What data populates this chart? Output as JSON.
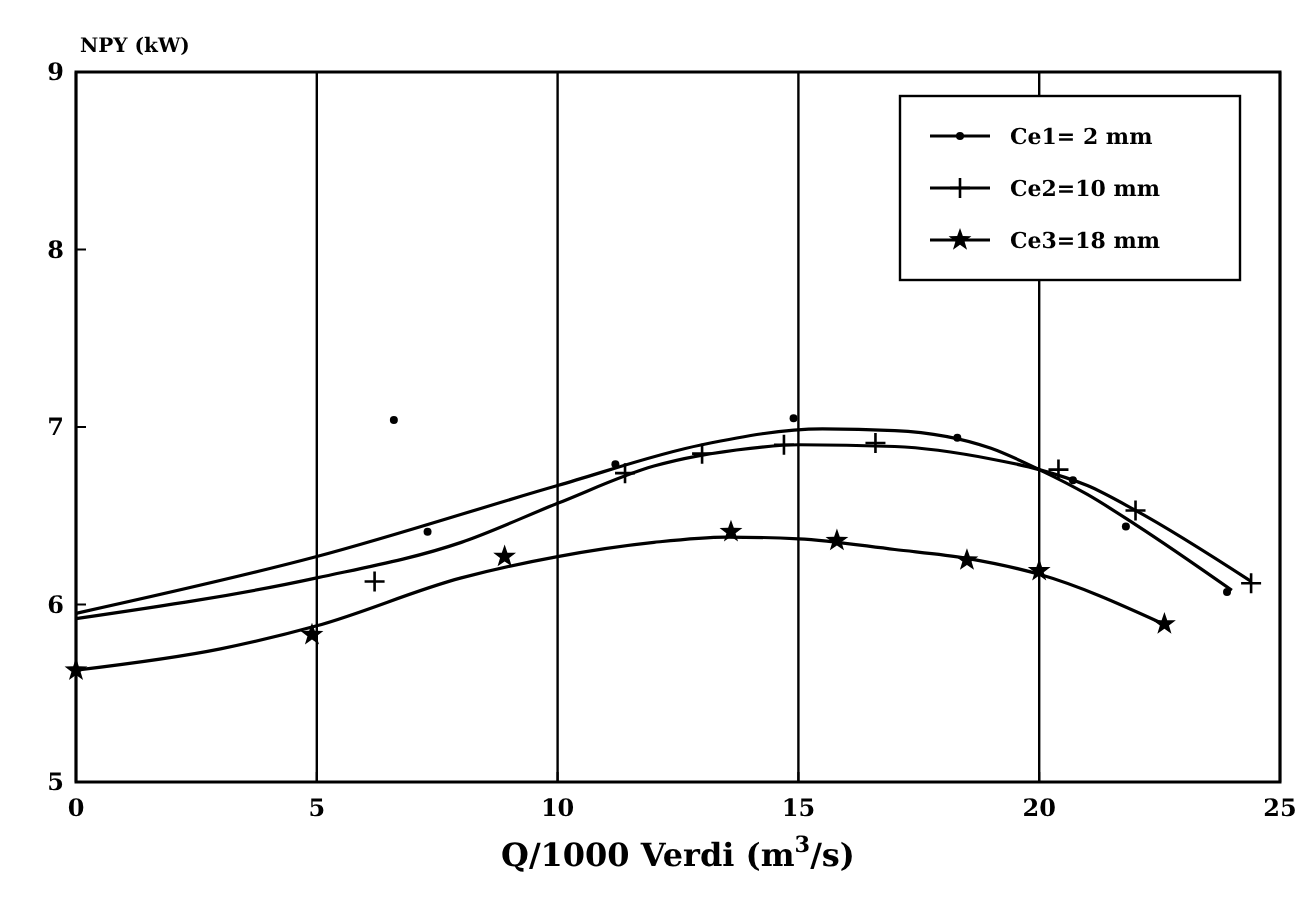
{
  "chart_data": {
    "type": "scatter",
    "xlabel": "Q/1000 Verdi (m$^{3}$/s)",
    "ylabel": "NPY (kW)",
    "xlim": [
      0,
      25
    ],
    "ylim": [
      5,
      9
    ],
    "xticks": [
      0,
      5,
      10,
      15,
      20,
      25
    ],
    "yticks": [
      5,
      6,
      7,
      8,
      9
    ],
    "grid": "x",
    "legend": "top right",
    "series": [
      {
        "name": "Ce1= 2 mm",
        "color": "#000000",
        "marker": "circle",
        "x": [
          6.6,
          7.3,
          11.2,
          14.9,
          18.3,
          20.7,
          21.8,
          23.9
        ],
        "values": [
          7.04,
          6.41,
          6.79,
          7.05,
          6.94,
          6.7,
          6.44,
          6.07
        ]
      },
      {
        "name": "Ce2=10 mm",
        "color": "#000000",
        "marker": "cross",
        "x": [
          6.2,
          11.4,
          13,
          14.7,
          16.6,
          20.4,
          22,
          24.4
        ],
        "values": [
          6.13,
          6.74,
          6.85,
          6.9,
          6.91,
          6.76,
          6.53,
          6.12
        ]
      },
      {
        "name": "Ce3=18 mm",
        "color": "#000000",
        "marker": "star",
        "x": [
          0,
          4.9,
          8.9,
          13.6,
          15.8,
          18.5,
          20,
          22.6
        ],
        "values": [
          5.63,
          5.83,
          6.27,
          6.41,
          6.36,
          6.25,
          6.19,
          5.89
        ]
      },
      {
        "type": "line",
        "color": "#000000",
        "marker": "none",
        "x": [
          0,
          5,
          10,
          13,
          15.5,
          17,
          19,
          20,
          21,
          22,
          24
        ],
        "values": [
          5.95,
          6.27,
          6.67,
          6.9,
          6.99,
          6.98,
          6.88,
          6.76,
          6.62,
          6.45,
          6.08
        ]
      },
      {
        "type": "line",
        "color": "#000000",
        "marker": "none",
        "x": [
          0,
          5,
          8,
          10,
          12,
          14,
          15,
          17,
          19,
          20,
          21,
          22,
          24.4
        ],
        "values": [
          5.92,
          6.15,
          6.35,
          6.57,
          6.78,
          6.88,
          6.9,
          6.89,
          6.82,
          6.76,
          6.67,
          6.53,
          6.13
        ]
      },
      {
        "type": "line",
        "color": "#000000",
        "marker": "none",
        "x": [
          0,
          3,
          5,
          8,
          10,
          12,
          13.5,
          15,
          17,
          18.5,
          20,
          22.5
        ],
        "values": [
          5.63,
          5.75,
          5.88,
          6.15,
          6.27,
          6.35,
          6.38,
          6.37,
          6.31,
          6.26,
          6.17,
          5.9
        ]
      }
    ]
  }
}
